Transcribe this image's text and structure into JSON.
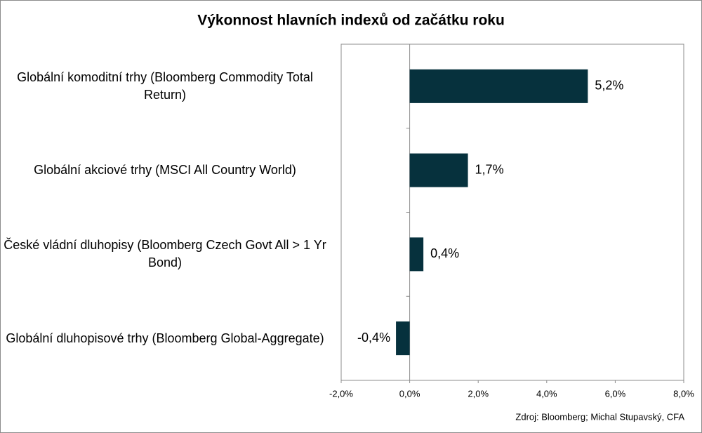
{
  "chart_data": {
    "type": "barh",
    "title": "Výkonnost hlavních indexů od začátku roku",
    "categories": [
      "Globální komoditní trhy (Bloomberg Commodity Total Return)",
      "Globální akciové trhy (MSCI All Country World)",
      "České vládní dluhopisy (Bloomberg Czech Govt All > 1 Yr Bond)",
      "Globální dluhopisové trhy (Bloomberg Global-Aggregate)"
    ],
    "values": [
      5.2,
      1.7,
      0.4,
      -0.4
    ],
    "value_labels": [
      "5,2%",
      "1,7%",
      "0,4%",
      "-0,4%"
    ],
    "color": "#06313d",
    "xlim": [
      -2,
      8
    ],
    "xticks": [
      {
        "value": -2,
        "label": "-2,0%"
      },
      {
        "value": 0,
        "label": "0,0%"
      },
      {
        "value": 2,
        "label": "2,0%"
      },
      {
        "value": 4,
        "label": "4,0%"
      },
      {
        "value": 6,
        "label": "6,0%"
      },
      {
        "value": 8,
        "label": "8,0%"
      }
    ],
    "grid": false,
    "source": "Zdroj: Bloomberg; Michal Stupavský, CFA"
  }
}
